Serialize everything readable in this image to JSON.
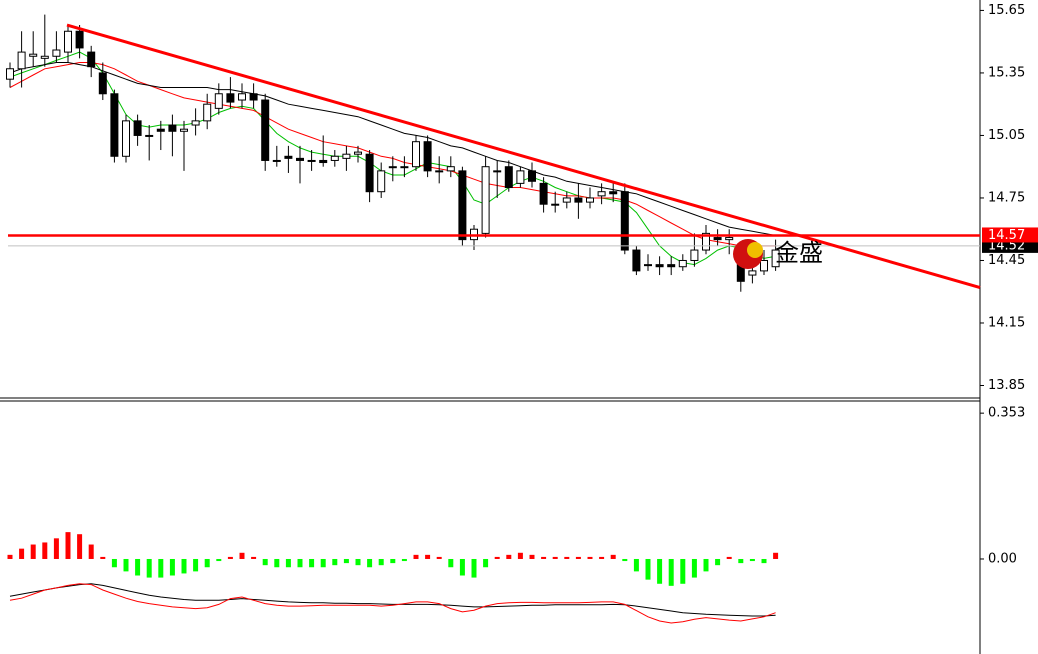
{
  "chart_data": [
    {
      "type": "candlestick",
      "open": [
        15.32,
        15.37,
        15.43,
        15.42,
        15.43,
        15.45,
        15.55,
        15.45,
        15.35,
        15.25,
        14.95,
        15.12,
        15.05,
        15.08,
        15.1,
        15.07,
        15.1,
        15.12,
        15.18,
        15.25,
        15.22,
        15.25,
        15.22,
        14.93,
        14.95,
        14.94,
        14.93,
        14.93,
        14.93,
        14.94,
        14.96,
        14.96,
        14.78,
        14.9,
        14.9,
        14.9,
        15.02,
        14.88,
        14.88,
        14.88,
        14.55,
        14.58,
        14.88,
        14.9,
        14.82,
        14.88,
        14.82,
        14.72,
        14.73,
        14.75,
        14.73,
        14.76,
        14.78,
        14.78,
        14.5,
        14.43,
        14.43,
        14.43,
        14.42,
        14.45,
        14.5,
        14.56,
        14.55,
        14.47,
        14.38,
        14.4,
        14.42
      ],
      "high": [
        15.4,
        15.55,
        15.55,
        15.63,
        15.55,
        15.58,
        15.58,
        15.48,
        15.4,
        15.27,
        15.15,
        15.15,
        15.1,
        15.12,
        15.15,
        15.12,
        15.18,
        15.25,
        15.3,
        15.33,
        15.3,
        15.3,
        15.25,
        15.0,
        15.0,
        15.0,
        14.98,
        15.05,
        14.98,
        15.0,
        15.0,
        14.98,
        14.92,
        14.95,
        14.95,
        15.05,
        15.05,
        14.95,
        14.95,
        14.9,
        14.62,
        14.95,
        14.93,
        14.93,
        14.9,
        14.92,
        14.85,
        14.78,
        14.78,
        14.82,
        14.8,
        14.82,
        14.82,
        14.82,
        14.52,
        14.48,
        14.47,
        14.47,
        14.48,
        14.58,
        14.62,
        14.6,
        14.6,
        14.5,
        14.48,
        14.5,
        14.55
      ],
      "low": [
        15.28,
        15.28,
        15.38,
        15.38,
        15.4,
        15.4,
        15.42,
        15.33,
        15.22,
        14.92,
        14.92,
        15.0,
        14.93,
        14.98,
        14.95,
        14.88,
        15.05,
        15.08,
        15.15,
        15.18,
        15.18,
        15.18,
        14.88,
        14.9,
        14.87,
        14.82,
        14.88,
        14.9,
        14.9,
        14.88,
        14.92,
        14.73,
        14.75,
        14.83,
        14.85,
        14.88,
        14.85,
        14.82,
        14.85,
        14.52,
        14.5,
        14.56,
        14.75,
        14.78,
        14.8,
        14.8,
        14.68,
        14.68,
        14.7,
        14.65,
        14.7,
        14.72,
        14.73,
        14.48,
        14.38,
        14.4,
        14.38,
        14.38,
        14.4,
        14.42,
        14.48,
        14.52,
        14.48,
        14.3,
        14.34,
        14.38,
        14.4
      ],
      "close": [
        15.37,
        15.45,
        15.44,
        15.43,
        15.46,
        15.55,
        15.47,
        15.38,
        15.25,
        14.95,
        15.12,
        15.05,
        15.05,
        15.07,
        15.07,
        15.08,
        15.12,
        15.2,
        15.25,
        15.21,
        15.25,
        15.22,
        14.93,
        14.93,
        14.94,
        14.93,
        14.93,
        14.92,
        14.95,
        14.96,
        14.97,
        14.78,
        14.88,
        14.9,
        14.9,
        15.02,
        14.88,
        14.88,
        14.9,
        14.55,
        14.6,
        14.9,
        14.88,
        14.8,
        14.88,
        14.83,
        14.72,
        14.72,
        14.75,
        14.73,
        14.75,
        14.78,
        14.77,
        14.5,
        14.4,
        14.43,
        14.42,
        14.42,
        14.45,
        14.5,
        14.58,
        14.55,
        14.56,
        14.35,
        14.4,
        14.45,
        14.5
      ],
      "series": [
        {
          "color": "#00c000",
          "values": [
            15.33,
            15.35,
            15.37,
            15.39,
            15.41,
            15.43,
            15.45,
            15.42,
            15.35,
            15.25,
            15.15,
            15.1,
            15.09,
            15.1,
            15.1,
            15.1,
            15.11,
            15.13,
            15.16,
            15.18,
            15.19,
            15.18,
            15.12,
            15.06,
            15.02,
            14.99,
            14.97,
            14.96,
            14.95,
            14.95,
            14.95,
            14.92,
            14.88,
            14.86,
            14.86,
            14.89,
            14.92,
            14.91,
            14.9,
            14.83,
            14.74,
            14.72,
            14.76,
            14.8,
            14.83,
            14.85,
            14.83,
            14.8,
            14.78,
            14.76,
            14.75,
            14.75,
            14.74,
            14.73,
            14.68,
            14.6,
            14.52,
            14.47,
            14.44,
            14.43,
            14.46,
            14.5,
            14.52,
            14.51,
            14.48,
            14.46,
            14.47
          ]
        },
        {
          "color": "#ff0000",
          "values": [
            15.28,
            15.31,
            15.34,
            15.37,
            15.38,
            15.39,
            15.4,
            15.4,
            15.39,
            15.37,
            15.34,
            15.31,
            15.29,
            15.27,
            15.25,
            15.23,
            15.22,
            15.21,
            15.2,
            15.19,
            15.18,
            15.17,
            15.14,
            15.11,
            15.08,
            15.06,
            15.04,
            15.02,
            15.01,
            15.0,
            14.99,
            14.97,
            14.95,
            14.94,
            14.92,
            14.91,
            14.9,
            14.89,
            14.88,
            14.86,
            14.84,
            14.82,
            14.81,
            14.8,
            14.8,
            14.79,
            14.78,
            14.77,
            14.76,
            14.76,
            14.75,
            14.75,
            14.75,
            14.74,
            14.72,
            14.69,
            14.66,
            14.63,
            14.6,
            14.57,
            14.55,
            14.54,
            14.53,
            14.52,
            14.52,
            14.52,
            14.52
          ]
        },
        {
          "color": "#000000",
          "values": [
            15.35,
            15.37,
            15.38,
            15.39,
            15.4,
            15.4,
            15.39,
            15.38,
            15.36,
            15.34,
            15.32,
            15.3,
            15.29,
            15.28,
            15.28,
            15.28,
            15.28,
            15.28,
            15.27,
            15.27,
            15.26,
            15.25,
            15.24,
            15.22,
            15.2,
            15.19,
            15.18,
            15.17,
            15.16,
            15.15,
            15.14,
            15.12,
            15.1,
            15.08,
            15.06,
            15.05,
            15.04,
            15.02,
            15.0,
            14.99,
            14.97,
            14.95,
            14.93,
            14.92,
            14.9,
            14.88,
            14.86,
            14.85,
            14.83,
            14.82,
            14.81,
            14.8,
            14.79,
            14.78,
            14.77,
            14.75,
            14.73,
            14.71,
            14.69,
            14.67,
            14.65,
            14.63,
            14.61,
            14.6,
            14.59,
            14.58,
            14.57
          ]
        }
      ],
      "trendline": {
        "start": 15.58,
        "end": 14.32,
        "color": "#ff0000"
      },
      "price_lines": [
        {
          "value": 14.57,
          "color": "#ff0000"
        },
        {
          "value": 14.52,
          "color": "#c0c0c0"
        }
      ],
      "watermark": "金盛",
      "ylim": [
        13.79,
        15.7
      ],
      "yticks": [
        15.65,
        15.35,
        15.05,
        14.75,
        14.45,
        14.15,
        13.85
      ]
    },
    {
      "type": "bar",
      "values": [
        0.01,
        0.025,
        0.035,
        0.04,
        0.05,
        0.065,
        0.06,
        0.035,
        0.005,
        -0.02,
        -0.03,
        -0.04,
        -0.045,
        -0.045,
        -0.04,
        -0.035,
        -0.03,
        -0.02,
        -0.005,
        0.005,
        0.015,
        0.005,
        -0.015,
        -0.02,
        -0.02,
        -0.02,
        -0.02,
        -0.02,
        -0.015,
        -0.01,
        -0.015,
        -0.02,
        -0.015,
        -0.01,
        -0.005,
        0.01,
        0.01,
        0.005,
        -0.02,
        -0.04,
        -0.045,
        -0.02,
        0.005,
        0.01,
        0.015,
        0.01,
        0.005,
        0.005,
        0.005,
        0.005,
        0.005,
        0.005,
        0.01,
        -0.005,
        -0.03,
        -0.05,
        -0.06,
        -0.065,
        -0.06,
        -0.045,
        -0.03,
        -0.015,
        0.005,
        -0.01,
        -0.005,
        -0.01,
        0.015
      ],
      "positive_color": "#ff0000",
      "negative_color": "#00ff00",
      "series": [
        {
          "color": "#000000",
          "values": [
            -0.09,
            -0.085,
            -0.08,
            -0.075,
            -0.07,
            -0.066,
            -0.062,
            -0.06,
            -0.064,
            -0.07,
            -0.076,
            -0.082,
            -0.088,
            -0.092,
            -0.095,
            -0.098,
            -0.1,
            -0.1,
            -0.1,
            -0.098,
            -0.096,
            -0.098,
            -0.1,
            -0.102,
            -0.104,
            -0.105,
            -0.106,
            -0.106,
            -0.107,
            -0.107,
            -0.108,
            -0.108,
            -0.109,
            -0.11,
            -0.11,
            -0.11,
            -0.11,
            -0.111,
            -0.112,
            -0.114,
            -0.116,
            -0.116,
            -0.115,
            -0.114,
            -0.113,
            -0.112,
            -0.112,
            -0.111,
            -0.111,
            -0.111,
            -0.111,
            -0.111,
            -0.11,
            -0.111,
            -0.114,
            -0.118,
            -0.122,
            -0.126,
            -0.13,
            -0.132,
            -0.134,
            -0.135,
            -0.136,
            -0.137,
            -0.138,
            -0.138,
            -0.136
          ]
        },
        {
          "color": "#ff0000",
          "values": [
            -0.1,
            -0.095,
            -0.085,
            -0.075,
            -0.07,
            -0.064,
            -0.06,
            -0.062,
            -0.075,
            -0.085,
            -0.095,
            -0.103,
            -0.108,
            -0.112,
            -0.116,
            -0.118,
            -0.12,
            -0.118,
            -0.11,
            -0.096,
            -0.092,
            -0.1,
            -0.108,
            -0.112,
            -0.114,
            -0.114,
            -0.113,
            -0.112,
            -0.112,
            -0.112,
            -0.112,
            -0.112,
            -0.114,
            -0.112,
            -0.108,
            -0.104,
            -0.104,
            -0.108,
            -0.12,
            -0.128,
            -0.124,
            -0.114,
            -0.108,
            -0.106,
            -0.105,
            -0.105,
            -0.106,
            -0.106,
            -0.106,
            -0.106,
            -0.105,
            -0.104,
            -0.104,
            -0.11,
            -0.125,
            -0.14,
            -0.15,
            -0.155,
            -0.152,
            -0.146,
            -0.142,
            -0.145,
            -0.148,
            -0.15,
            -0.145,
            -0.14,
            -0.13
          ]
        }
      ],
      "ylim": [
        -0.23,
        0.38
      ],
      "yticks": [
        0.353,
        {
          "value": 0,
          "label": "0.00"
        }
      ]
    }
  ]
}
